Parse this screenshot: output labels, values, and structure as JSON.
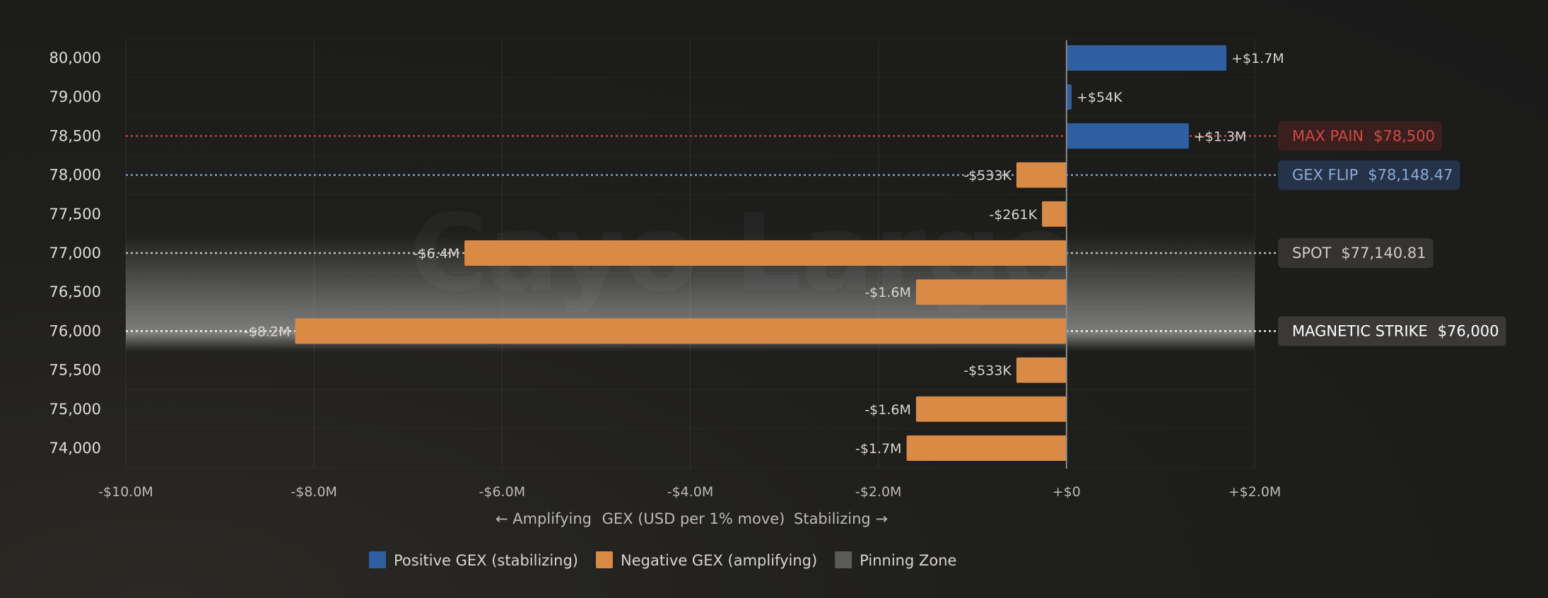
{
  "watermark": "Cayo Largo",
  "chart_data": {
    "type": "bar",
    "orientation": "horizontal",
    "xlabel": "GEX (USD per 1% move)",
    "xlabel_left": "← Amplifying",
    "xlabel_right": "Stabilizing →",
    "xlim": [
      -10000000,
      2000000
    ],
    "xticks": [
      {
        "value": -10000000,
        "label": "-$10.0M"
      },
      {
        "value": -8000000,
        "label": "-$8.0M"
      },
      {
        "value": -6000000,
        "label": "-$6.0M"
      },
      {
        "value": -4000000,
        "label": "-$4.0M"
      },
      {
        "value": -2000000,
        "label": "-$2.0M"
      },
      {
        "value": 0,
        "label": "+$0"
      },
      {
        "value": 2000000,
        "label": "+$2.0M"
      }
    ],
    "bars": [
      {
        "strike": "80,000",
        "value": 1700000,
        "label": "+$1.7M"
      },
      {
        "strike": "79,000",
        "value": 54000,
        "label": "+$54K"
      },
      {
        "strike": "78,500",
        "value": 1300000,
        "label": "+$1.3M"
      },
      {
        "strike": "78,000",
        "value": -533000,
        "label": "-$533K"
      },
      {
        "strike": "77,500",
        "value": -261000,
        "label": "-$261K"
      },
      {
        "strike": "77,000",
        "value": -6400000,
        "label": "-$6.4M"
      },
      {
        "strike": "76,500",
        "value": -1600000,
        "label": "-$1.6M"
      },
      {
        "strike": "76,000",
        "value": -8200000,
        "label": "-$8.2M"
      },
      {
        "strike": "75,500",
        "value": -533000,
        "label": "-$533K"
      },
      {
        "strike": "75,000",
        "value": -1600000,
        "label": "-$1.6M"
      },
      {
        "strike": "74,000",
        "value": -1700000,
        "label": "-$1.7M"
      }
    ],
    "markers": [
      {
        "key": "max_pain",
        "strike": "78,500",
        "name": "MAX PAIN",
        "value": "$78,500",
        "color": "#cf4a43",
        "bg": "#3b1e1e"
      },
      {
        "key": "gex_flip",
        "strike": "78,000",
        "name": "GEX FLIP",
        "value": "$78,148.47",
        "color": "#8ea9cf",
        "bg": "#243349"
      },
      {
        "key": "spot",
        "strike": "77,000",
        "name": "SPOT",
        "value": "$77,140.81",
        "color": "#cfccc5",
        "bg": "#343331"
      },
      {
        "key": "magnetic",
        "strike": "76,000",
        "name": "MAGNETIC STRIKE",
        "value": "$76,000",
        "color": "#ffffff",
        "bg": "#3a3937"
      }
    ],
    "pinning_zone": {
      "from": "77,000",
      "to": "76,000"
    },
    "colors": {
      "positive": "#2f5fa3",
      "negative": "#d98a45",
      "pinning": "#5a5a58"
    },
    "legend": [
      {
        "label": "Positive GEX (stabilizing)",
        "color": "#2f5fa3"
      },
      {
        "label": "Negative GEX (amplifying)",
        "color": "#d98a45"
      },
      {
        "label": "Pinning Zone",
        "color": "#5a5a58"
      }
    ],
    "legend_position": "bottom-center",
    "grid": true
  }
}
